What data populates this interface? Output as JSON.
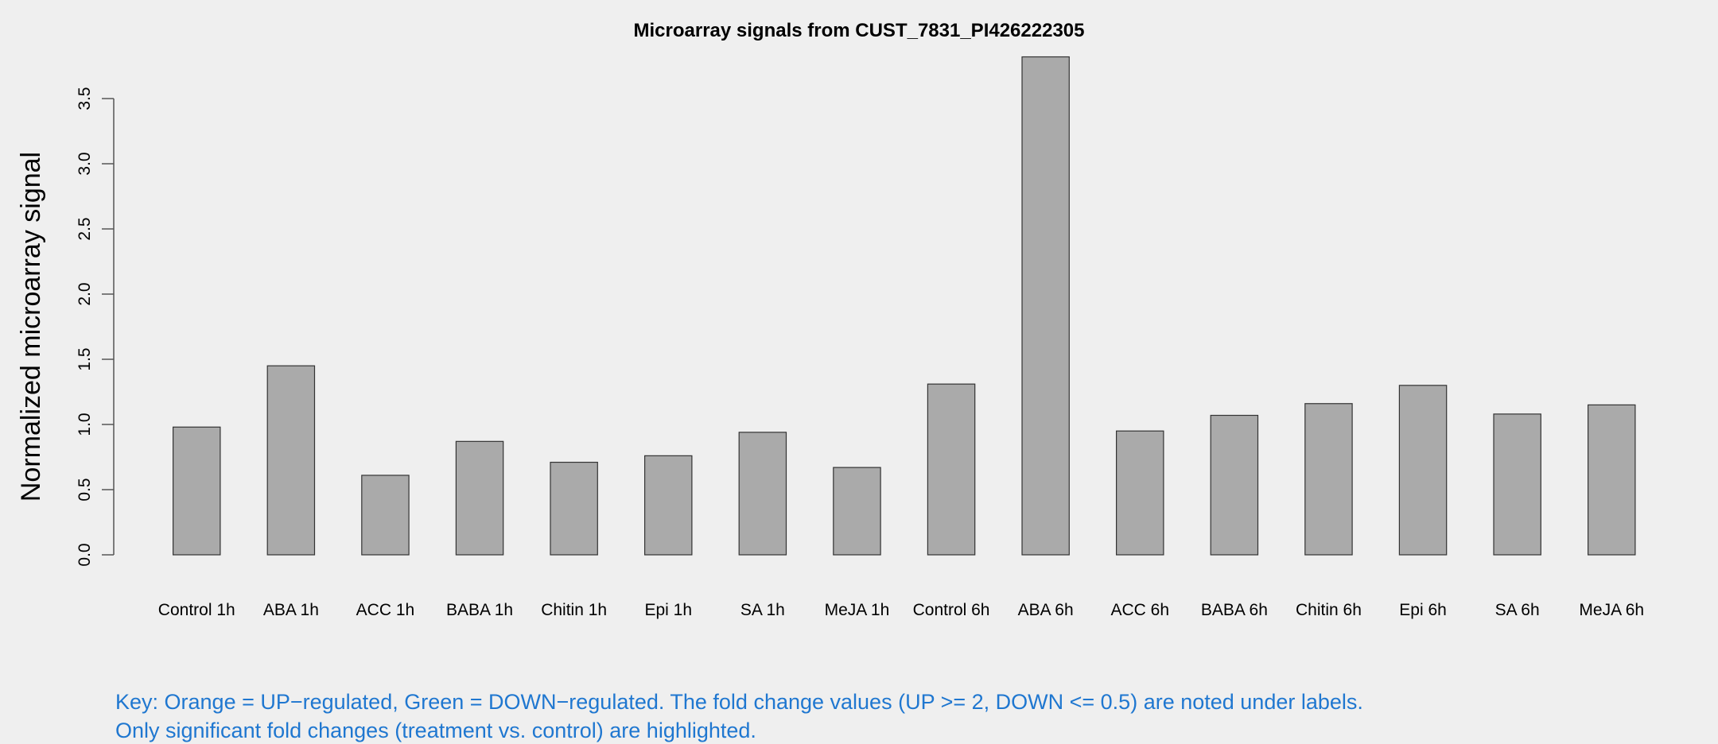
{
  "chart_data": {
    "type": "bar",
    "title": "Microarray signals from CUST_7831_PI426222305",
    "xlabel": "",
    "ylabel": "Normalized microarray signal",
    "ylim": [
      0,
      3.85
    ],
    "yticks": [
      "0.0",
      "0.5",
      "1.0",
      "1.5",
      "2.0",
      "2.5",
      "3.0",
      "3.5"
    ],
    "categories": [
      "Control 1h",
      "ABA 1h",
      "ACC 1h",
      "BABA 1h",
      "Chitin 1h",
      "Epi 1h",
      "SA 1h",
      "MeJA 1h",
      "Control 6h",
      "ABA 6h",
      "ACC 6h",
      "BABA 6h",
      "Chitin 6h",
      "Epi 6h",
      "SA 6h",
      "MeJA 6h"
    ],
    "values": [
      0.98,
      1.45,
      0.61,
      0.87,
      0.71,
      0.76,
      0.94,
      0.67,
      1.31,
      3.82,
      0.95,
      1.07,
      1.16,
      1.3,
      1.08,
      1.15
    ],
    "bar_color": "#aaaaaa",
    "grid": false
  },
  "key": {
    "line1": "Key: Orange = UP−regulated, Green = DOWN−regulated. The fold change values (UP >= 2, DOWN <= 0.5) are noted under labels.",
    "line2": "Only significant fold changes (treatment vs. control) are highlighted.",
    "color": "#1f77d0"
  }
}
